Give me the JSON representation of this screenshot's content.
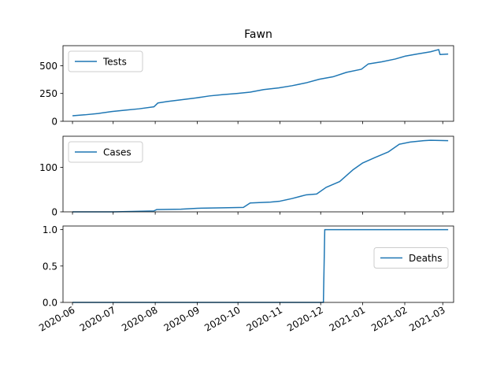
{
  "chart_data": {
    "type": "line",
    "title": "Fawn",
    "x_axis": {
      "type": "date",
      "range": [
        "2020-05-25",
        "2021-03-09"
      ],
      "tick_labels": [
        "2020-06",
        "2020-07",
        "2020-08",
        "2020-09",
        "2020-10",
        "2020-11",
        "2020-12",
        "2021-01",
        "2021-02",
        "2021-03"
      ],
      "tick_dates": [
        "2020-06-01",
        "2020-07-01",
        "2020-08-01",
        "2020-09-01",
        "2020-10-01",
        "2020-11-01",
        "2020-12-01",
        "2021-01-01",
        "2021-02-01",
        "2021-03-01"
      ],
      "label_rotation_deg": 30,
      "shared": true
    },
    "panels": [
      {
        "series_name": "Tests",
        "legend_position": "upper-left",
        "ylim": [
          0,
          680
        ],
        "yticks": [
          0,
          250,
          500
        ],
        "points": [
          [
            "2020-06-01",
            50
          ],
          [
            "2020-06-10",
            58
          ],
          [
            "2020-06-20",
            70
          ],
          [
            "2020-06-30",
            88
          ],
          [
            "2020-07-10",
            100
          ],
          [
            "2020-07-20",
            112
          ],
          [
            "2020-07-31",
            130
          ],
          [
            "2020-08-03",
            165
          ],
          [
            "2020-08-10",
            178
          ],
          [
            "2020-08-20",
            193
          ],
          [
            "2020-08-31",
            210
          ],
          [
            "2020-09-10",
            228
          ],
          [
            "2020-09-20",
            240
          ],
          [
            "2020-09-30",
            250
          ],
          [
            "2020-10-10",
            262
          ],
          [
            "2020-10-20",
            285
          ],
          [
            "2020-10-31",
            300
          ],
          [
            "2020-11-10",
            320
          ],
          [
            "2020-11-20",
            345
          ],
          [
            "2020-11-30",
            378
          ],
          [
            "2020-12-10",
            400
          ],
          [
            "2020-12-20",
            440
          ],
          [
            "2020-12-31",
            468
          ],
          [
            "2021-01-05",
            515
          ],
          [
            "2021-01-15",
            535
          ],
          [
            "2021-01-25",
            560
          ],
          [
            "2021-02-01",
            585
          ],
          [
            "2021-02-10",
            605
          ],
          [
            "2021-02-20",
            625
          ],
          [
            "2021-02-26",
            645
          ],
          [
            "2021-02-27",
            600
          ],
          [
            "2021-03-05",
            605
          ]
        ]
      },
      {
        "series_name": "Cases",
        "legend_position": "upper-left",
        "ylim": [
          0,
          170
        ],
        "yticks": [
          0,
          100
        ],
        "points": [
          [
            "2020-06-01",
            0
          ],
          [
            "2020-06-15",
            0
          ],
          [
            "2020-07-01",
            0
          ],
          [
            "2020-07-15",
            1
          ],
          [
            "2020-07-31",
            2
          ],
          [
            "2020-08-02",
            5
          ],
          [
            "2020-08-20",
            6
          ],
          [
            "2020-09-01",
            8
          ],
          [
            "2020-09-20",
            9
          ],
          [
            "2020-10-05",
            10
          ],
          [
            "2020-10-10",
            20
          ],
          [
            "2020-10-25",
            22
          ],
          [
            "2020-11-01",
            24
          ],
          [
            "2020-11-10",
            30
          ],
          [
            "2020-11-20",
            38
          ],
          [
            "2020-11-28",
            40
          ],
          [
            "2020-12-05",
            55
          ],
          [
            "2020-12-15",
            68
          ],
          [
            "2020-12-25",
            95
          ],
          [
            "2021-01-01",
            110
          ],
          [
            "2021-01-10",
            122
          ],
          [
            "2021-01-20",
            135
          ],
          [
            "2021-01-28",
            152
          ],
          [
            "2021-02-05",
            157
          ],
          [
            "2021-02-15",
            160
          ],
          [
            "2021-02-20",
            161
          ],
          [
            "2021-03-05",
            160
          ]
        ]
      },
      {
        "series_name": "Deaths",
        "legend_position": "center-right",
        "ylim": [
          0,
          1.05
        ],
        "yticks": [
          0.0,
          0.5,
          1.0
        ],
        "ytick_labels": [
          "0.0",
          "0.5",
          "1.0"
        ],
        "points": [
          [
            "2020-06-01",
            0
          ],
          [
            "2020-12-03",
            0
          ],
          [
            "2020-12-04",
            1
          ],
          [
            "2021-03-05",
            1
          ]
        ]
      }
    ]
  }
}
